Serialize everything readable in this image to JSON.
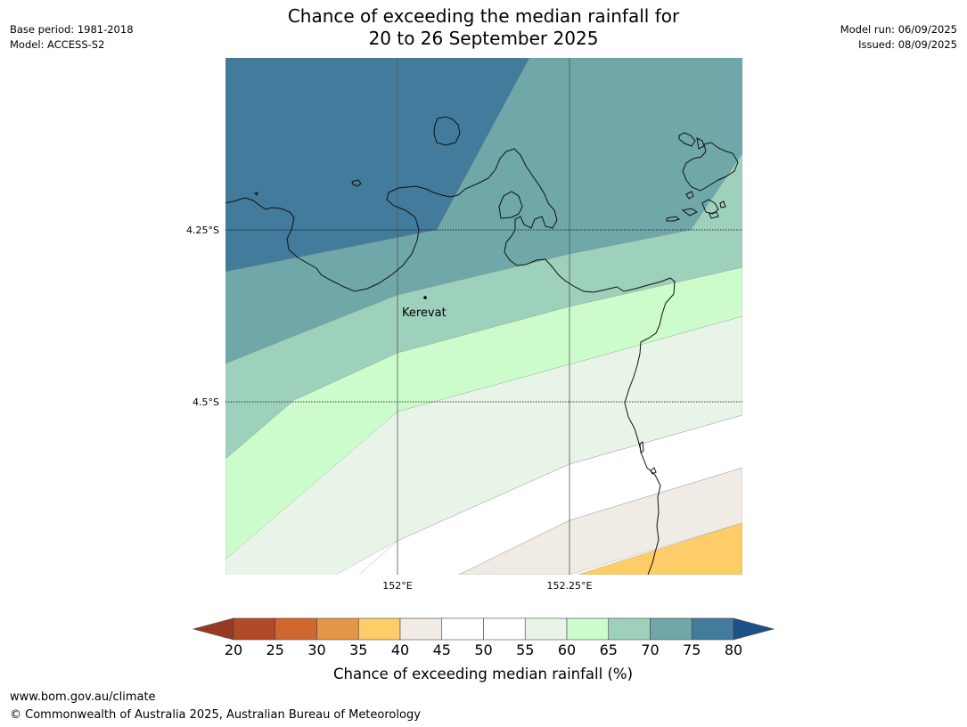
{
  "title": {
    "line1": "Chance of exceeding the median rainfall for",
    "line2": "20 to 26 September 2025"
  },
  "meta_left": {
    "base_period": "Base period: 1981-2018",
    "model": "Model: ACCESS-S2"
  },
  "meta_right": {
    "model_run": "Model run: 06/09/2025",
    "issued": "Issued: 08/09/2025"
  },
  "map": {
    "lat_labels": [
      "4.25°S",
      "4.5°S"
    ],
    "lon_labels": [
      "152°E",
      "152.25°E"
    ],
    "place": "Kerevat"
  },
  "colorbar": {
    "label": "Chance of exceeding median rainfall (%)",
    "ticks": [
      "20",
      "25",
      "30",
      "35",
      "40",
      "45",
      "50",
      "55",
      "60",
      "65",
      "70",
      "75",
      "80"
    ],
    "colors": [
      "#b14a26",
      "#d0672f",
      "#e39645",
      "#fecd67",
      "#f0ebe4",
      "#ffffff",
      "#ffffff",
      "#e9f4e9",
      "#ccfccc",
      "#9ed1bb",
      "#70a7a8",
      "#427b9b"
    ],
    "under_color": "#963b22",
    "over_color": "#1a5186"
  },
  "footer": {
    "url": "www.bom.gov.au/climate",
    "copyright": "© Commonwealth of Australia 2025, Australian Bureau of Meteorology"
  }
}
